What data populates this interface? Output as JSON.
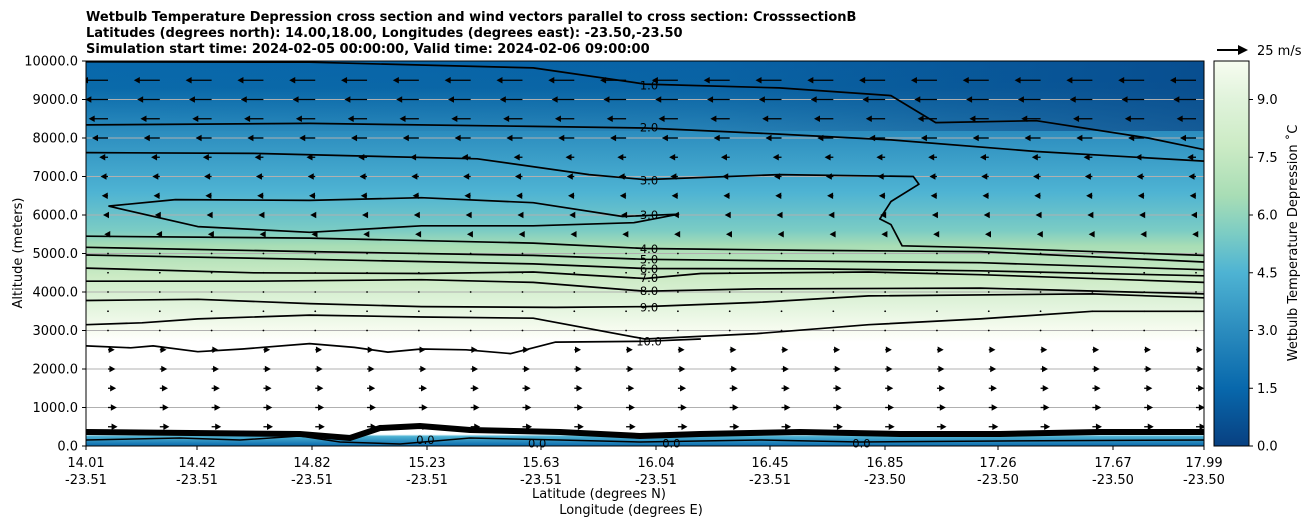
{
  "chart_data": {
    "type": "contour-cross-section",
    "title_lines": [
      "Wetbulb Temperature Depression cross section and wind vectors parallel to cross section: CrosssectionB",
      "Latitudes (degrees north): 14.00,18.00, Longitudes (degrees east): -23.50,-23.50",
      "Simulation start time: 2024-02-05 00:00:00, Valid time: 2024-02-06 09:00:00"
    ],
    "ylabel": "Altitude (meters)",
    "xlabel_lat": "Latitude (degrees N)",
    "xlabel_lon": "Longitude (degrees E)",
    "ylim": [
      0,
      10000
    ],
    "y_ticks": [
      "0.0",
      "1000.0",
      "2000.0",
      "3000.0",
      "4000.0",
      "5000.0",
      "6000.0",
      "7000.0",
      "8000.0",
      "9000.0",
      "10000.0"
    ],
    "x_ticks": [
      {
        "lat": "14.01",
        "lon": "-23.51"
      },
      {
        "lat": "14.42",
        "lon": "-23.51"
      },
      {
        "lat": "14.82",
        "lon": "-23.51"
      },
      {
        "lat": "15.23",
        "lon": "-23.51"
      },
      {
        "lat": "15.63",
        "lon": "-23.51"
      },
      {
        "lat": "16.04",
        "lon": "-23.51"
      },
      {
        "lat": "16.45",
        "lon": "-23.51"
      },
      {
        "lat": "16.85",
        "lon": "-23.50"
      },
      {
        "lat": "17.26",
        "lon": "-23.50"
      },
      {
        "lat": "17.67",
        "lon": "-23.50"
      },
      {
        "lat": "17.99",
        "lon": "-23.50"
      }
    ],
    "grid": "horizontal",
    "colorbar": {
      "label": "Wetbulb Temperature Depression ˚C",
      "ticks": [
        "0.0",
        "1.5",
        "3.0",
        "4.5",
        "6.0",
        "7.5",
        "9.0"
      ],
      "range": [
        0,
        10
      ]
    },
    "quiver_key": {
      "label": "25 m/s"
    },
    "contour_labels": [
      {
        "text": "1.0",
        "x": 0.5,
        "alt": 9370
      },
      {
        "text": "2.0",
        "x": 0.5,
        "alt": 8270
      },
      {
        "text": "3.0",
        "x": 0.5,
        "alt": 6900
      },
      {
        "text": "3.0",
        "x": 0.5,
        "alt": 6000
      },
      {
        "text": "4.0",
        "x": 0.5,
        "alt": 5120
      },
      {
        "text": "5.0",
        "x": 0.5,
        "alt": 4840
      },
      {
        "text": "6.0",
        "x": 0.5,
        "alt": 4600
      },
      {
        "text": "7.0",
        "x": 0.5,
        "alt": 4370
      },
      {
        "text": "8.0",
        "x": 0.5,
        "alt": 4020
      },
      {
        "text": "9.0",
        "x": 0.5,
        "alt": 3600
      },
      {
        "text": "10.0",
        "x": 0.5,
        "alt": 2720
      },
      {
        "text": "0.0",
        "x": 0.3,
        "alt": 160
      },
      {
        "text": "0.0",
        "x": 0.4,
        "alt": 70
      },
      {
        "text": "0.0",
        "x": 0.52,
        "alt": 70
      },
      {
        "text": "0.0",
        "x": 0.69,
        "alt": 70
      }
    ],
    "contour_lines": [
      {
        "level": 1.0,
        "pts": [
          [
            0,
            9980
          ],
          [
            0.2,
            9970
          ],
          [
            0.4,
            9820
          ],
          [
            0.5,
            9400
          ],
          [
            0.62,
            9300
          ],
          [
            0.72,
            9100
          ],
          [
            0.76,
            8400
          ],
          [
            0.85,
            8450
          ],
          [
            0.95,
            8000
          ],
          [
            1.0,
            7700
          ]
        ]
      },
      {
        "level": 2.0,
        "pts": [
          [
            0,
            8340
          ],
          [
            0.2,
            8380
          ],
          [
            0.4,
            8300
          ],
          [
            0.5,
            8260
          ],
          [
            0.62,
            8100
          ],
          [
            0.72,
            7950
          ],
          [
            0.85,
            7650
          ],
          [
            1.0,
            7400
          ]
        ]
      },
      {
        "level": 3.0,
        "pts": [
          [
            0,
            7620
          ],
          [
            0.15,
            7600
          ],
          [
            0.35,
            7460
          ],
          [
            0.45,
            7050
          ],
          [
            0.5,
            6920
          ],
          [
            0.62,
            7050
          ],
          [
            0.74,
            7000
          ],
          [
            0.745,
            6800
          ],
          [
            0.72,
            6350
          ],
          [
            0.71,
            5900
          ],
          [
            0.72,
            5750
          ],
          [
            0.73,
            5200
          ],
          [
            0.8,
            5150
          ],
          [
            1.0,
            4950
          ]
        ]
      },
      {
        "level": 3.0,
        "pts": [
          [
            0.02,
            6230
          ],
          [
            0.08,
            6400
          ],
          [
            0.2,
            6380
          ],
          [
            0.3,
            6450
          ],
          [
            0.4,
            6320
          ],
          [
            0.48,
            5960
          ],
          [
            0.53,
            6020
          ],
          [
            0.49,
            5800
          ],
          [
            0.4,
            5720
          ],
          [
            0.3,
            5720
          ],
          [
            0.2,
            5550
          ],
          [
            0.1,
            5700
          ],
          [
            0.02,
            6230
          ]
        ]
      },
      {
        "level": 4.0,
        "pts": [
          [
            0,
            5450
          ],
          [
            0.2,
            5400
          ],
          [
            0.4,
            5270
          ],
          [
            0.5,
            5130
          ],
          [
            0.65,
            5080
          ],
          [
            0.8,
            5050
          ],
          [
            1.0,
            4780
          ]
        ]
      },
      {
        "level": 5.0,
        "pts": [
          [
            0,
            5160
          ],
          [
            0.2,
            5050
          ],
          [
            0.4,
            4950
          ],
          [
            0.5,
            4850
          ],
          [
            0.65,
            4800
          ],
          [
            0.8,
            4760
          ],
          [
            1.0,
            4580
          ]
        ]
      },
      {
        "level": 6.0,
        "pts": [
          [
            0,
            4960
          ],
          [
            0.2,
            4850
          ],
          [
            0.4,
            4730
          ],
          [
            0.5,
            4610
          ],
          [
            0.65,
            4600
          ],
          [
            0.8,
            4550
          ],
          [
            1.0,
            4420
          ]
        ]
      },
      {
        "level": 7.0,
        "pts": [
          [
            0,
            4620
          ],
          [
            0.15,
            4500
          ],
          [
            0.3,
            4480
          ],
          [
            0.4,
            4520
          ],
          [
            0.5,
            4350
          ],
          [
            0.55,
            4480
          ],
          [
            0.7,
            4520
          ],
          [
            0.8,
            4450
          ],
          [
            1.0,
            4250
          ]
        ]
      },
      {
        "level": 8.0,
        "pts": [
          [
            0,
            4280
          ],
          [
            0.15,
            4280
          ],
          [
            0.3,
            4320
          ],
          [
            0.4,
            4250
          ],
          [
            0.5,
            4020
          ],
          [
            0.6,
            4080
          ],
          [
            0.8,
            4100
          ],
          [
            1.0,
            3950
          ]
        ]
      },
      {
        "level": 9.0,
        "pts": [
          [
            0,
            3780
          ],
          [
            0.1,
            3810
          ],
          [
            0.2,
            3700
          ],
          [
            0.3,
            3620
          ],
          [
            0.42,
            3600
          ],
          [
            0.5,
            3620
          ],
          [
            0.6,
            3730
          ],
          [
            0.7,
            3900
          ],
          [
            0.9,
            3950
          ],
          [
            1.0,
            3850
          ]
        ]
      },
      {
        "level": 10.0,
        "pts": [
          [
            0,
            3150
          ],
          [
            0.05,
            3200
          ],
          [
            0.1,
            3300
          ],
          [
            0.2,
            3400
          ],
          [
            0.3,
            3350
          ],
          [
            0.4,
            3320
          ],
          [
            0.5,
            2780
          ],
          [
            0.6,
            2920
          ],
          [
            0.7,
            3150
          ],
          [
            0.8,
            3300
          ],
          [
            0.9,
            3500
          ],
          [
            1.0,
            3500
          ]
        ]
      },
      {
        "level": 10.0,
        "pts": [
          [
            0,
            2600
          ],
          [
            0.04,
            2550
          ],
          [
            0.06,
            2600
          ],
          [
            0.1,
            2450
          ],
          [
            0.14,
            2520
          ],
          [
            0.2,
            2660
          ],
          [
            0.24,
            2560
          ],
          [
            0.27,
            2440
          ],
          [
            0.3,
            2520
          ],
          [
            0.34,
            2500
          ],
          [
            0.38,
            2400
          ],
          [
            0.42,
            2700
          ],
          [
            0.5,
            2720
          ],
          [
            0.55,
            2780
          ]
        ]
      }
    ],
    "wind_field": {
      "columns": 22,
      "rows": 20,
      "upper_winds": "easterly",
      "lower_winds": "westerly"
    }
  }
}
